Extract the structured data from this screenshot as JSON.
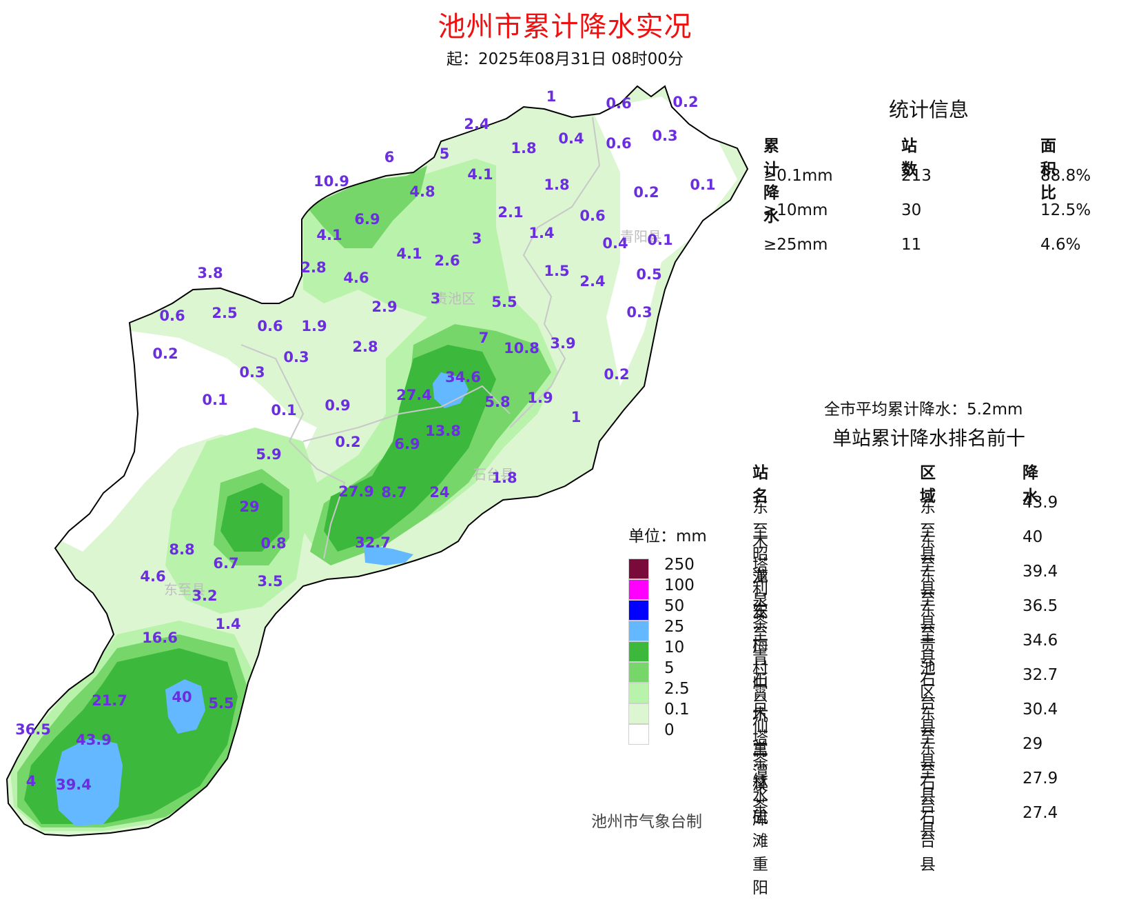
{
  "title": "池州市累计降水实况",
  "subtitle": "起：2025年08月31日 08时00分",
  "map": {
    "district_labels": [
      "青阳县",
      "贵池区",
      "石台县",
      "东至县"
    ],
    "station_values": [
      {
        "v": "1"
      },
      {
        "v": "0.6"
      },
      {
        "v": "0.2"
      },
      {
        "v": "2.4"
      },
      {
        "v": "1.8"
      },
      {
        "v": "0.4"
      },
      {
        "v": "0.6"
      },
      {
        "v": "0.3"
      },
      {
        "v": "6"
      },
      {
        "v": "5"
      },
      {
        "v": "10.9"
      },
      {
        "v": "4.1"
      },
      {
        "v": "4.8"
      },
      {
        "v": "1.8"
      },
      {
        "v": "0.2"
      },
      {
        "v": "0.1"
      },
      {
        "v": "6.9"
      },
      {
        "v": "2.1"
      },
      {
        "v": "0.6"
      },
      {
        "v": "4.1"
      },
      {
        "v": "3"
      },
      {
        "v": "1.4"
      },
      {
        "v": "0.4"
      },
      {
        "v": "0.1"
      },
      {
        "v": "4.1"
      },
      {
        "v": "2.6"
      },
      {
        "v": "3.8"
      },
      {
        "v": "2.8"
      },
      {
        "v": "4.6"
      },
      {
        "v": "1.5"
      },
      {
        "v": "2.4"
      },
      {
        "v": "0.5"
      },
      {
        "v": "3"
      },
      {
        "v": "5.5"
      },
      {
        "v": "0.6"
      },
      {
        "v": "2.5"
      },
      {
        "v": "0.6"
      },
      {
        "v": "1.9"
      },
      {
        "v": "2.9"
      },
      {
        "v": "0.3"
      },
      {
        "v": "7"
      },
      {
        "v": "10.8"
      },
      {
        "v": "3.9"
      },
      {
        "v": "0.2"
      },
      {
        "v": "0.3"
      },
      {
        "v": "2.8"
      },
      {
        "v": "0.2"
      },
      {
        "v": "34.6"
      },
      {
        "v": "0.3"
      },
      {
        "v": "27.4"
      },
      {
        "v": "5.8"
      },
      {
        "v": "1.9"
      },
      {
        "v": "0.1"
      },
      {
        "v": "0.1"
      },
      {
        "v": "0.9"
      },
      {
        "v": "1"
      },
      {
        "v": "13.8"
      },
      {
        "v": "5.9"
      },
      {
        "v": "0.2"
      },
      {
        "v": "6.9"
      },
      {
        "v": "1.8"
      },
      {
        "v": "27.9"
      },
      {
        "v": "8.7"
      },
      {
        "v": "24"
      },
      {
        "v": "29"
      },
      {
        "v": "32.7"
      },
      {
        "v": "8.8"
      },
      {
        "v": "0.8"
      },
      {
        "v": "6.7"
      },
      {
        "v": "4.6"
      },
      {
        "v": "3.5"
      },
      {
        "v": "3.2"
      },
      {
        "v": "1.4"
      },
      {
        "v": "16.6"
      },
      {
        "v": "21.7"
      },
      {
        "v": "40"
      },
      {
        "v": "5.5"
      },
      {
        "v": "36.5"
      },
      {
        "v": "43.9"
      },
      {
        "v": "4"
      },
      {
        "v": "39.4"
      }
    ]
  },
  "stats": {
    "title": "统计信息",
    "headers": [
      "累计降水",
      "站数",
      "面积比"
    ],
    "rows": [
      [
        "≥0.1mm",
        "213",
        "88.8%"
      ],
      [
        "≥10mm",
        "30",
        "12.5%"
      ],
      [
        "≥25mm",
        "11",
        "4.6%"
      ]
    ]
  },
  "average": "全市平均累计降水：5.2mm",
  "ranking": {
    "title": "单站累计降水排名前十",
    "headers": [
      "站名",
      "区域",
      "降水"
    ],
    "rows": [
      [
        "东至昭潭",
        "东至县",
        "43.9"
      ],
      [
        "木塔利安",
        "东至县",
        "40"
      ],
      [
        "龙泉茶厂",
        "东至县",
        "39.4"
      ],
      [
        "东至青山",
        "东至县",
        "36.5"
      ],
      [
        "梅村霄坑",
        "贵池区",
        "34.6"
      ],
      [
        "石台仙寓",
        "石台县",
        "32.7"
      ],
      [
        "木塔茶溪",
        "东至县",
        "30.4"
      ],
      [
        "兰潭水库",
        "东至县",
        "29"
      ],
      [
        "林茶",
        "石台县",
        "27.9"
      ],
      [
        "矶滩重阳",
        "石台县",
        "27.4"
      ]
    ]
  },
  "legend": {
    "unit": "单位：mm",
    "items": [
      {
        "label": "250",
        "color": "#7a0a3a"
      },
      {
        "label": "100",
        "color": "#ff00ff"
      },
      {
        "label": "50",
        "color": "#0000ff"
      },
      {
        "label": "25",
        "color": "#63b8ff"
      },
      {
        "label": "10",
        "color": "#3cb93c"
      },
      {
        "label": "5",
        "color": "#76d66a"
      },
      {
        "label": "2.5",
        "color": "#b9f2aa"
      },
      {
        "label": "0.1",
        "color": "#dcf6d2"
      },
      {
        "label": "0",
        "color": "#ffffff"
      }
    ]
  },
  "credit": "池州市气象台制"
}
